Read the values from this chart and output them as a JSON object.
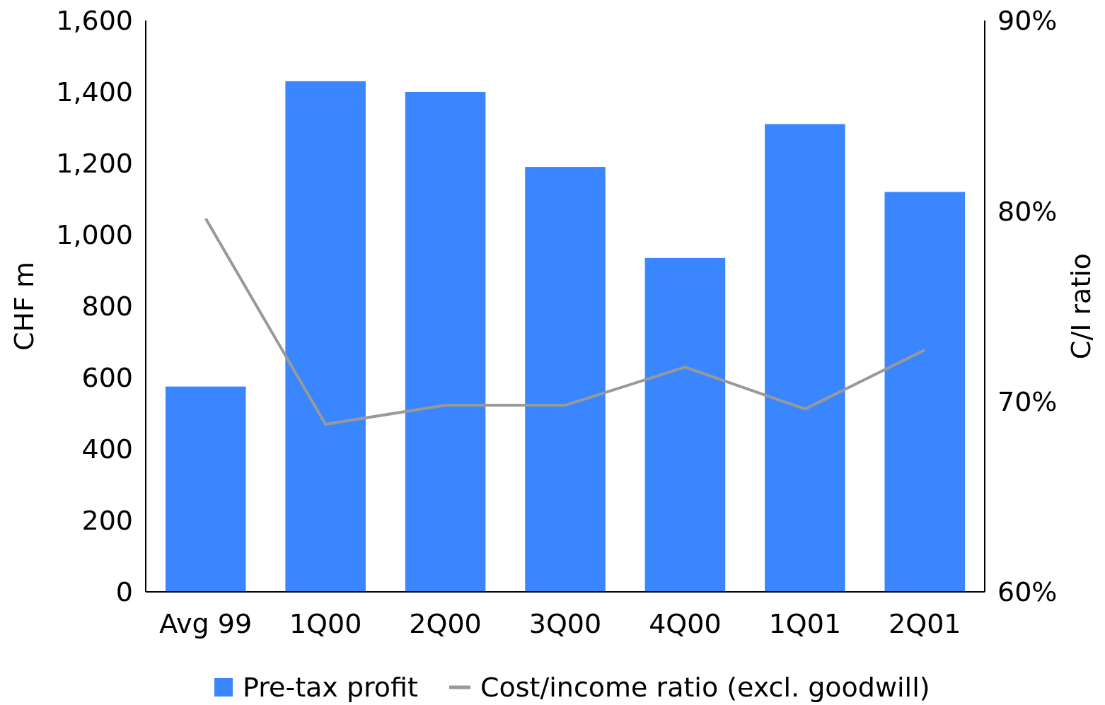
{
  "chart_data": {
    "type": "bar",
    "categories": [
      "Avg 99",
      "1Q00",
      "2Q00",
      "3Q00",
      "4Q00",
      "1Q01",
      "2Q01"
    ],
    "series": [
      {
        "name": "Pre-tax profit",
        "color": "#3a86ff",
        "values": [
          575,
          1430,
          1400,
          1190,
          935,
          1310,
          1120
        ]
      },
      {
        "name": "Cost/income ratio (excl. goodwill)",
        "type": "line",
        "axis": "y2",
        "color": "#999999",
        "values": [
          79.6,
          68.8,
          69.8,
          69.8,
          71.8,
          69.6,
          72.7
        ]
      }
    ],
    "ylabel": "CHF m",
    "y2label": "C/I ratio",
    "ylim": [
      0,
      1600
    ],
    "yticks": [
      {
        "value": 0,
        "label": "0"
      },
      {
        "value": 200,
        "label": "200"
      },
      {
        "value": 400,
        "label": "400"
      },
      {
        "value": 600,
        "label": "600"
      },
      {
        "value": 800,
        "label": "800"
      },
      {
        "value": 1000,
        "label": "1,000"
      },
      {
        "value": 1200,
        "label": "1,200"
      },
      {
        "value": 1400,
        "label": "1,400"
      },
      {
        "value": 1600,
        "label": "1,600"
      }
    ],
    "y2lim": [
      60,
      90
    ],
    "y2ticks": [
      {
        "value": 60,
        "label": "60%"
      },
      {
        "value": 70,
        "label": "70%"
      },
      {
        "value": 80,
        "label": "80%"
      },
      {
        "value": 90,
        "label": "90%"
      }
    ],
    "legend": "bottom",
    "grid": false,
    "marker": "none",
    "line_style": "solid"
  }
}
